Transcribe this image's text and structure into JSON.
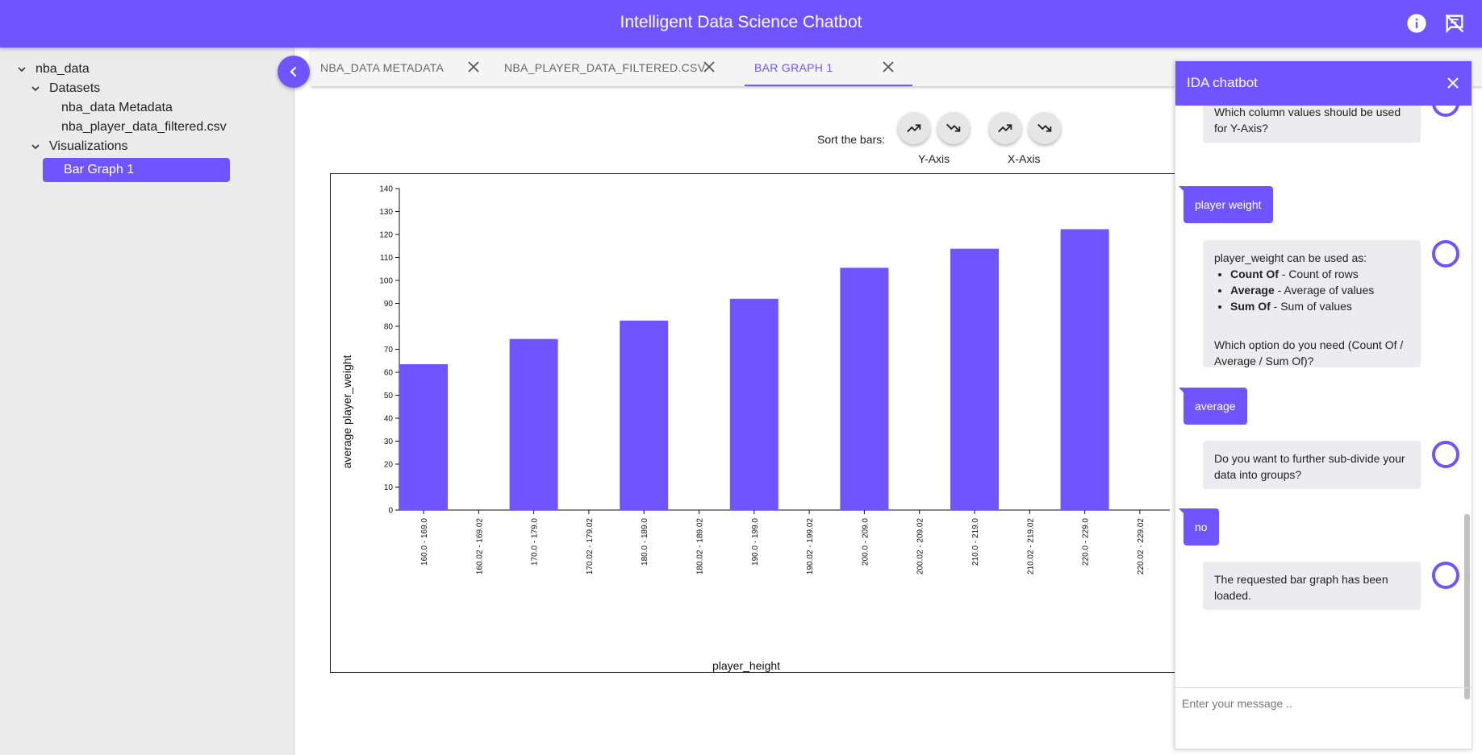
{
  "app": {
    "title": "Intelligent Data Science Chatbot",
    "accent": "#7054ff"
  },
  "header_icons": [
    "info-icon",
    "chat-off-icon"
  ],
  "sidebar": {
    "root": "nba_data",
    "datasets_label": "Datasets",
    "datasets": [
      "nba_data Metadata",
      "nba_player_data_filtered.csv"
    ],
    "visualizations_label": "Visualizations",
    "visualizations": [
      "Bar Graph 1"
    ]
  },
  "tabs": [
    {
      "label": "NBA_DATA METADATA",
      "active": false
    },
    {
      "label": "NBA_PLAYER_DATA_FILTERED.CSV",
      "active": false
    },
    {
      "label": "BAR GRAPH 1",
      "active": true
    }
  ],
  "sort": {
    "label": "Sort the bars:",
    "y_axis_label": "Y-Axis",
    "x_axis_label": "X-Axis"
  },
  "chart_data": {
    "type": "bar",
    "title": "",
    "xlabel": "player_height",
    "ylabel": "average player_weight",
    "ylim": [
      0,
      140
    ],
    "yticks": [
      0,
      10,
      20,
      30,
      40,
      50,
      60,
      70,
      80,
      90,
      100,
      110,
      120,
      130,
      140
    ],
    "categories": [
      "160.0 - 169.0",
      "160.02 - 169.02",
      "170.0 - 179.0",
      "170.02 - 179.02",
      "180.0 - 189.0",
      "180.02 - 189.02",
      "190.0 - 199.0",
      "190.02 - 199.02",
      "200.0 - 209.0",
      "200.02 - 209.02",
      "210.0 - 219.0",
      "210.02 - 219.02",
      "220.0 - 229.0",
      "220.02 - 229.02"
    ],
    "values": [
      63.5,
      0,
      74.5,
      0,
      82.5,
      0,
      92,
      0,
      105.5,
      0,
      113.8,
      0,
      122.3,
      0
    ],
    "bar_color": "#7054ff",
    "grid": false
  },
  "chatbot": {
    "title": "IDA chatbot",
    "input_placeholder": "Enter your message ..",
    "messages": [
      {
        "from": "bot",
        "text": "Which column values should be used for Y-Axis?"
      },
      {
        "from": "user",
        "text": "player weight"
      },
      {
        "from": "bot",
        "intro": "player_weight can be used as:",
        "options": [
          {
            "name": "Count Of",
            "desc": " - Count of rows"
          },
          {
            "name": "Average",
            "desc": " - Average of values"
          },
          {
            "name": "Sum Of",
            "desc": " - Sum of values"
          }
        ],
        "outro": "Which option do you need (Count Of / Average / Sum Of)?"
      },
      {
        "from": "user",
        "text": "average"
      },
      {
        "from": "bot",
        "text": "Do you want to further sub-divide your data into groups?"
      },
      {
        "from": "user",
        "text": "no"
      },
      {
        "from": "bot",
        "text": "The requested bar graph has been loaded."
      }
    ]
  }
}
